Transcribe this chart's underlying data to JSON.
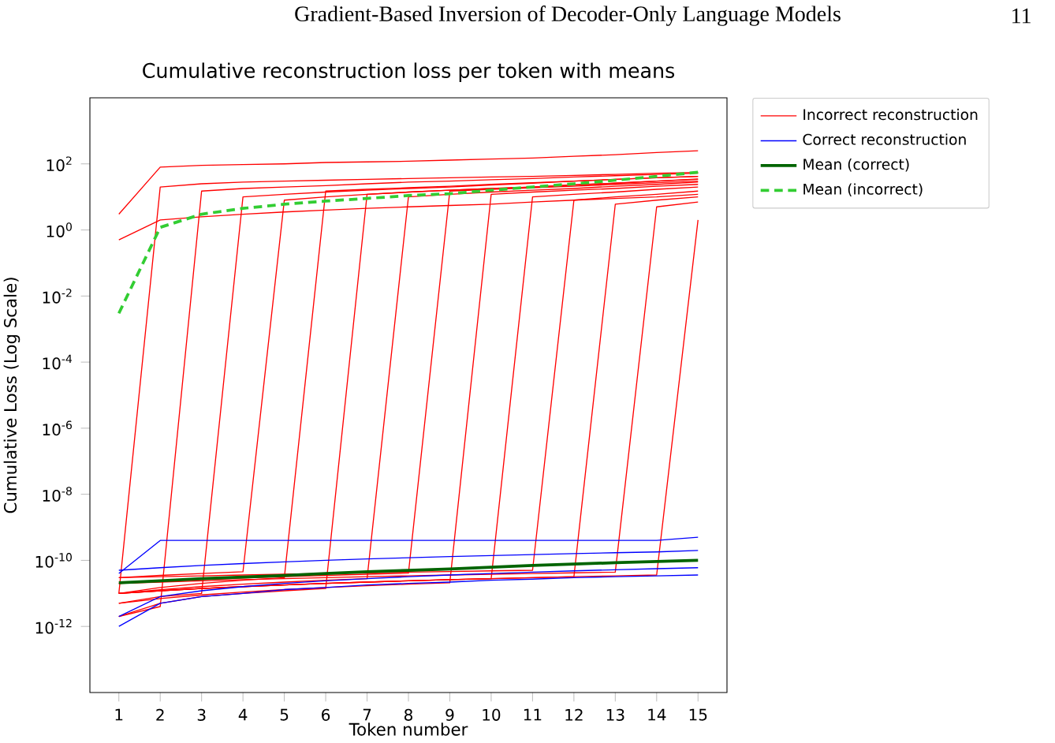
{
  "chart_data": {
    "type": "line",
    "title": "Cumulative reconstruction loss per token with means",
    "xlabel": "Token number",
    "ylabel": "Cumulative Loss (Log Scale)",
    "annotations": [
      "Gradient-Based Inversion of Decoder-Only Language Models",
      "11"
    ],
    "log": "y",
    "legend": "top right",
    "x": [
      1,
      2,
      3,
      4,
      5,
      6,
      7,
      8,
      9,
      10,
      11,
      12,
      13,
      14,
      15
    ],
    "xlim": [
      0.3,
      15.7
    ],
    "xticks": [
      1,
      2,
      3,
      4,
      5,
      6,
      7,
      8,
      9,
      10,
      11,
      12,
      13,
      14,
      15
    ],
    "ylim": [
      1e-14,
      10000.0
    ],
    "yticks": [
      {
        "value": 1e-12,
        "label": "10$^{-12}$"
      },
      {
        "value": 1e-10,
        "label": "10$^{-10}$"
      },
      {
        "value": 1e-08,
        "label": "10$^{-8}$"
      },
      {
        "value": 1e-06,
        "label": "10$^{-6}$"
      },
      {
        "value": 0.0001,
        "label": "10$^{-4}$"
      },
      {
        "value": 0.01,
        "label": "10$^{-2}$"
      },
      {
        "value": 1,
        "label": "10$^{0}$"
      },
      {
        "value": 100,
        "label": "10$^{2}$"
      }
    ],
    "series": [
      {
        "name": "Incorrect reconstruction",
        "color": "#ff0000",
        "values": [
          1e-11,
          20,
          25,
          28,
          30,
          32,
          34,
          36,
          38,
          40,
          42,
          45,
          48,
          52,
          55
        ]
      },
      {
        "color": "#ff0000",
        "values": [
          2e-12,
          4e-12,
          15,
          18,
          20,
          22,
          25,
          28,
          30,
          33,
          36,
          40,
          44,
          48,
          52
        ]
      },
      {
        "color": "#ff0000",
        "values": [
          5e-12,
          8e-12,
          1e-11,
          10,
          12,
          14,
          16,
          18,
          20,
          23,
          26,
          30,
          34,
          38,
          42
        ]
      },
      {
        "color": "#ff0000",
        "values": [
          3e-11,
          3.5e-11,
          4e-11,
          4.5e-11,
          8,
          10,
          12,
          14,
          16,
          18,
          20,
          23,
          26,
          30,
          35
        ]
      },
      {
        "color": "#ff0000",
        "values": [
          1e-11,
          1.5e-11,
          2e-11,
          2.5e-11,
          3e-11,
          15,
          17,
          19,
          21,
          24,
          27,
          30,
          34,
          38,
          42
        ]
      },
      {
        "color": "#ff0000",
        "values": [
          2e-12,
          5e-12,
          8e-12,
          1e-11,
          1.2e-11,
          1.4e-11,
          12,
          14,
          16,
          18,
          20,
          23,
          26,
          30,
          34
        ]
      },
      {
        "color": "#ff0000",
        "values": [
          1e-11,
          1.3e-11,
          1.6e-11,
          1.9e-11,
          2.2e-11,
          2.5e-11,
          2.8e-11,
          10,
          12,
          14,
          16,
          18,
          21,
          24,
          28
        ]
      },
      {
        "color": "#ff0000",
        "values": [
          2e-11,
          2.3e-11,
          2.6e-11,
          2.9e-11,
          3.2e-11,
          3.5e-11,
          3.8e-11,
          4.1e-11,
          15,
          17,
          19,
          21,
          24,
          27,
          30
        ]
      },
      {
        "color": "#ff0000",
        "values": [
          5e-12,
          7e-12,
          9e-12,
          1.1e-11,
          1.3e-11,
          1.5e-11,
          1.7e-11,
          1.9e-11,
          2.1e-11,
          12,
          14,
          16,
          18,
          21,
          24
        ]
      },
      {
        "color": "#ff0000",
        "values": [
          1e-11,
          1.2e-11,
          1.4e-11,
          1.6e-11,
          1.8e-11,
          2e-11,
          2.2e-11,
          2.4e-11,
          2.6e-11,
          2.8e-11,
          10,
          12,
          14,
          17,
          20
        ]
      },
      {
        "color": "#ff0000",
        "values": [
          3e-11,
          3.2e-11,
          3.4e-11,
          3.6e-11,
          3.8e-11,
          4e-11,
          4.2e-11,
          4.4e-11,
          4.6e-11,
          4.8e-11,
          5e-11,
          8,
          10,
          12,
          15
        ]
      },
      {
        "color": "#ff0000",
        "values": [
          1e-11,
          1.2e-11,
          1.4e-11,
          1.6e-11,
          1.8e-11,
          2e-11,
          2.2e-11,
          2.4e-11,
          2.6e-11,
          2.8e-11,
          3e-11,
          3.2e-11,
          6,
          8,
          10
        ]
      },
      {
        "color": "#ff0000",
        "values": [
          2e-11,
          2.2e-11,
          2.4e-11,
          2.6e-11,
          2.8e-11,
          3e-11,
          3.2e-11,
          3.4e-11,
          3.6e-11,
          3.8e-11,
          4e-11,
          4.2e-11,
          4.4e-11,
          5,
          7
        ]
      },
      {
        "color": "#ff0000",
        "values": [
          1e-11,
          1.2e-11,
          1.4e-11,
          1.6e-11,
          1.8e-11,
          2e-11,
          2.2e-11,
          2.4e-11,
          2.6e-11,
          2.8e-11,
          3e-11,
          3.2e-11,
          3.4e-11,
          3.6e-11,
          2
        ]
      },
      {
        "color": "#ff0000",
        "values": [
          3,
          80,
          90,
          95,
          100,
          110,
          115,
          120,
          130,
          140,
          150,
          170,
          190,
          220,
          250
        ]
      },
      {
        "color": "#ff0000",
        "values": [
          0.5,
          2,
          2.5,
          3,
          3.5,
          4,
          4.5,
          5,
          5.5,
          6,
          7,
          8,
          9,
          10,
          12
        ]
      },
      {
        "name": "Correct reconstruction",
        "color": "#0000ff",
        "values": [
          1e-12,
          5e-12,
          8e-12,
          1e-11,
          1.3e-11,
          1.5e-11,
          1.8e-11,
          2e-11,
          2.2e-11,
          2.5e-11,
          2.7e-11,
          3e-11,
          3.2e-11,
          3.4e-11,
          3.6e-11
        ]
      },
      {
        "color": "#0000ff",
        "values": [
          5e-11,
          6e-11,
          7e-11,
          8e-11,
          9e-11,
          1e-10,
          1.1e-10,
          1.2e-10,
          1.3e-10,
          1.4e-10,
          1.5e-10,
          1.6e-10,
          1.7e-10,
          1.8e-10,
          2e-10
        ]
      },
      {
        "color": "#0000ff",
        "values": [
          4e-11,
          4e-10,
          4e-10,
          4e-10,
          4e-10,
          4e-10,
          4e-10,
          4e-10,
          4e-10,
          4e-10,
          4e-10,
          4e-10,
          4e-10,
          4e-10,
          5e-10
        ]
      },
      {
        "color": "#0000ff",
        "values": [
          2e-12,
          8e-12,
          1.2e-11,
          1.6e-11,
          2e-11,
          2.4e-11,
          2.8e-11,
          3.2e-11,
          3.6e-11,
          4e-11,
          4.4e-11,
          4.8e-11,
          5.2e-11,
          5.6e-11,
          6e-11
        ]
      },
      {
        "name": "Mean (correct)",
        "color": "#006400",
        "values": [
          2.1e-11,
          2.4e-11,
          2.8e-11,
          3.1e-11,
          3.5e-11,
          4e-11,
          4.5e-11,
          5e-11,
          5.5e-11,
          6.2e-11,
          7e-11,
          7.7e-11,
          8.5e-11,
          9.2e-11,
          1e-10
        ]
      },
      {
        "name": "Mean (incorrect)",
        "color": "#32cd32",
        "line_style": "dashed",
        "values": [
          0.003,
          1.2,
          3,
          4.5,
          6,
          7.5,
          9,
          11,
          12.5,
          16,
          20,
          25,
          32,
          42,
          56
        ]
      }
    ]
  }
}
